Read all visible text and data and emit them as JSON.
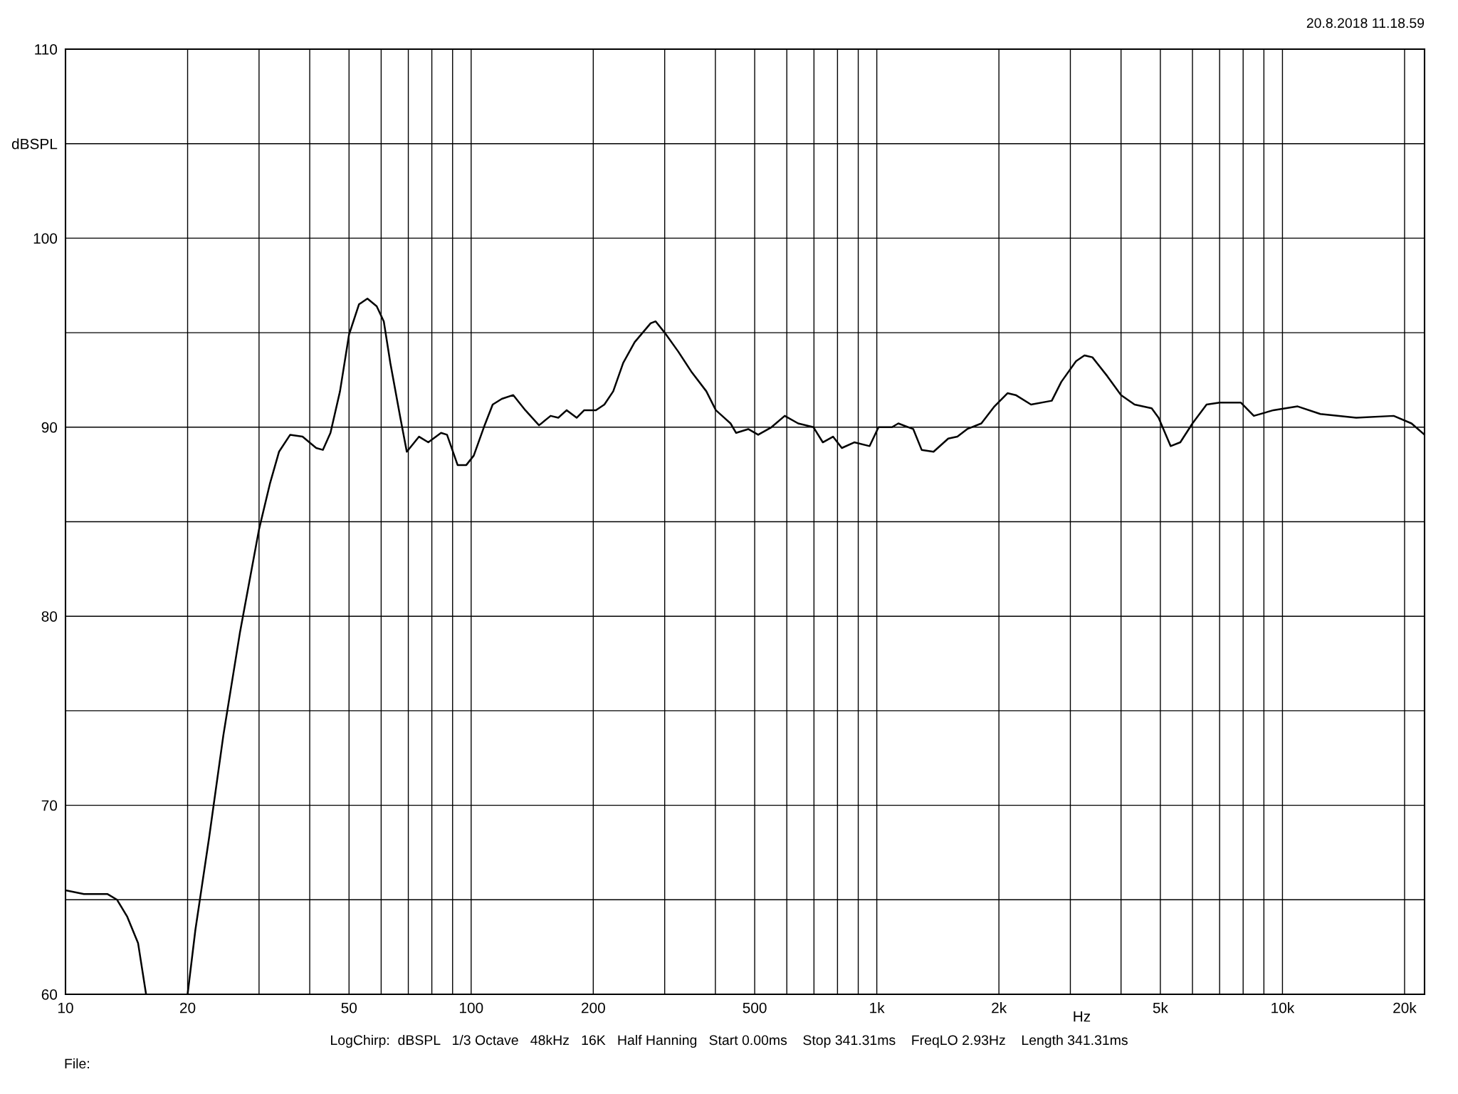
{
  "chart_data": {
    "type": "line",
    "xlabel": "Hz",
    "log": "x",
    "grid": true,
    "legend": false,
    "marker": "none",
    "line_style": "solid",
    "xlim": [
      10,
      22400
    ],
    "ylim": [
      60,
      110
    ],
    "xticks": [
      10,
      20,
      {
        "value": 30,
        "label": null
      },
      {
        "value": 40,
        "label": null
      },
      50,
      {
        "value": 60,
        "label": null
      },
      {
        "value": 70,
        "label": null
      },
      {
        "value": 80,
        "label": null
      },
      {
        "value": 90,
        "label": null
      },
      100,
      200,
      {
        "value": 300,
        "label": null
      },
      {
        "value": 400,
        "label": null
      },
      500,
      {
        "value": 600,
        "label": null
      },
      {
        "value": 700,
        "label": null
      },
      {
        "value": 800,
        "label": null
      },
      {
        "value": 900,
        "label": null
      },
      {
        "value": 1000,
        "label": "1k"
      },
      {
        "value": 2000,
        "label": "2k"
      },
      {
        "value": 3000,
        "label": null
      },
      {
        "value": 4000,
        "label": null
      },
      {
        "value": 5000,
        "label": "5k"
      },
      {
        "value": 6000,
        "label": null
      },
      {
        "value": 7000,
        "label": null
      },
      {
        "value": 8000,
        "label": null
      },
      {
        "value": 9000,
        "label": null
      },
      {
        "value": 10000,
        "label": "10k"
      },
      {
        "value": 20000,
        "label": "20k"
      }
    ],
    "yticks": [
      60,
      {
        "value": 65,
        "label": null
      },
      70,
      {
        "value": 75,
        "label": null
      },
      80,
      {
        "value": 85,
        "label": null
      },
      90,
      {
        "value": 95,
        "label": null
      },
      100,
      {
        "value": 105,
        "label": "dBSPL"
      },
      110
    ],
    "annotations": [
      "20.8.2018 11.18.59",
      "LogChirp:  dBSPL   1/3 Octave   48kHz   16K   Half Hanning   Start 0.00ms    Stop 341.31ms    FreqLO 2.93Hz    Length 341.31ms",
      "File:"
    ],
    "series": [
      {
        "color": "#000000",
        "x": [
          10,
          11.1,
          12.7,
          13.4,
          14.2,
          15.1,
          15.8,
          17,
          20,
          20.9,
          22.6,
          24.5,
          26.9,
          30,
          31.9,
          33.6,
          35.8,
          38.4,
          41.5,
          43.1,
          45,
          47.5,
          50,
          52.9,
          55.5,
          58.5,
          60.9,
          63.2,
          66.9,
          69.4,
          74.4,
          78.4,
          84.3,
          87.2,
          92.6,
          97.3,
          101.5,
          107.5,
          113,
          119,
          127,
          136,
          147,
          157,
          164,
          172,
          182,
          190,
          203,
          213,
          224,
          237,
          253,
          277,
          285,
          300,
          324,
          350,
          380,
          401,
          436,
          450,
          482,
          510,
          550,
          593,
          640,
          698,
          736,
          780,
          820,
          880,
          960,
          1010,
          1090,
          1130,
          1230,
          1290,
          1380,
          1500,
          1580,
          1670,
          1810,
          1950,
          2100,
          2200,
          2400,
          2700,
          2850,
          3100,
          3250,
          3400,
          3700,
          4000,
          4320,
          4760,
          4950,
          5300,
          5600,
          6000,
          6500,
          7000,
          7900,
          8500,
          9500,
          10900,
          12400,
          15200,
          18800,
          20800,
          22400
        ],
        "values": [
          65.5,
          65.3,
          65.3,
          65.0,
          64.1,
          62.7,
          60.0,
          null,
          60.0,
          63.4,
          68.3,
          73.7,
          79.1,
          84.6,
          87.0,
          88.7,
          89.6,
          89.5,
          88.9,
          88.8,
          89.7,
          91.9,
          94.9,
          96.5,
          96.8,
          96.4,
          95.6,
          93.4,
          90.5,
          88.7,
          89.5,
          89.2,
          89.7,
          89.6,
          88.0,
          88.0,
          88.5,
          90.0,
          91.2,
          91.5,
          91.7,
          90.9,
          90.1,
          90.6,
          90.5,
          90.9,
          90.5,
          90.9,
          90.9,
          91.2,
          91.9,
          93.4,
          94.5,
          95.5,
          95.6,
          95.0,
          94.0,
          92.9,
          91.9,
          90.9,
          90.2,
          89.7,
          89.9,
          89.6,
          90.0,
          90.6,
          90.2,
          90.0,
          89.2,
          89.5,
          88.9,
          89.2,
          89.0,
          90.0,
          90.0,
          90.2,
          89.9,
          88.8,
          88.7,
          89.4,
          89.5,
          89.9,
          90.2,
          91.1,
          91.8,
          91.7,
          91.2,
          91.4,
          92.4,
          93.5,
          93.8,
          93.7,
          92.7,
          91.7,
          91.2,
          91.0,
          90.5,
          89.0,
          89.2,
          90.2,
          91.2,
          91.3,
          91.3,
          90.6,
          90.9,
          91.1,
          90.7,
          90.5,
          90.6,
          90.2,
          89.6
        ]
      }
    ]
  }
}
